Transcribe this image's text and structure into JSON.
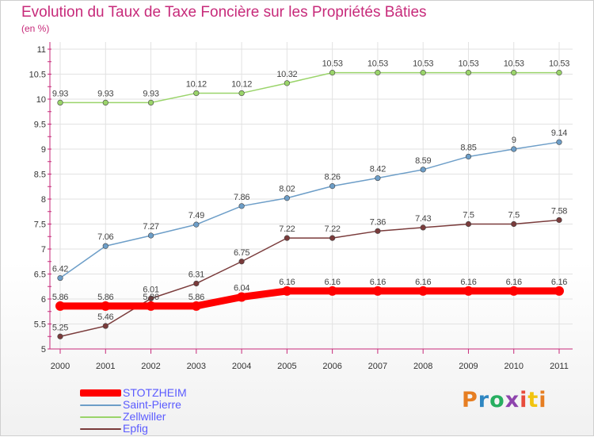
{
  "header": {
    "title": "Evolution du Taux de Taxe Foncière sur les Propriétés Bâties",
    "subtitle": "(en %)"
  },
  "logo": {
    "text": "Proxiti",
    "colors": [
      "#e67e22",
      "#2e86c1",
      "#27ae60",
      "#8e44ad",
      "#e74c3c",
      "#f1c40f",
      "#e67e22"
    ]
  },
  "chart_data": {
    "type": "line",
    "title": "Evolution du Taux de Taxe Foncière sur les Propriétés Bâties",
    "ylabel": "(en %)",
    "xlabel": "",
    "x": [
      "2000",
      "2001",
      "2002",
      "2003",
      "2004",
      "2005",
      "2006",
      "2007",
      "2008",
      "2009",
      "2010",
      "2011"
    ],
    "ylim": [
      5,
      11
    ],
    "yticks": [
      "5",
      "5.5",
      "6",
      "6.5",
      "7",
      "7.5",
      "8",
      "8.5",
      "9",
      "9.5",
      "10",
      "10.5",
      "11"
    ],
    "grid": true,
    "legend": "bottom-left",
    "series": [
      {
        "name": "STOTZHEIM",
        "color": "#ff0000",
        "values": [
          5.86,
          5.86,
          5.86,
          5.86,
          6.04,
          6.16,
          6.16,
          6.16,
          6.16,
          6.16,
          6.16,
          6.16
        ],
        "labels": [
          "5.86",
          "5.86",
          "5.86",
          "5.86",
          "6.04",
          "6.16",
          "6.16",
          "6.16",
          "6.16",
          "6.16",
          "6.16",
          "6.16"
        ]
      },
      {
        "name": "Saint-Pierre",
        "color": "#6d9ec8",
        "values": [
          6.42,
          7.06,
          7.27,
          7.49,
          7.86,
          8.02,
          8.26,
          8.42,
          8.59,
          8.85,
          9.0,
          9.14
        ],
        "labels": [
          "6.42",
          "7.06",
          "7.27",
          "7.49",
          "7.86",
          "8.02",
          "8.26",
          "8.42",
          "8.59",
          "8.85",
          "9",
          "9.14"
        ]
      },
      {
        "name": "Zellwiller",
        "color": "#9ad46a",
        "values": [
          9.93,
          9.93,
          9.93,
          10.12,
          10.12,
          10.32,
          10.53,
          10.53,
          10.53,
          10.53,
          10.53,
          10.53
        ],
        "labels": [
          "9.93",
          "9.93",
          "9.93",
          "10.12",
          "10.12",
          "10.32",
          "10.53",
          "10.53",
          "10.53",
          "10.53",
          "10.53",
          "10.53"
        ]
      },
      {
        "name": "Epfig",
        "color": "#7a3b3b",
        "values": [
          5.25,
          5.46,
          6.01,
          6.31,
          6.75,
          7.22,
          7.22,
          7.36,
          7.43,
          7.5,
          7.5,
          7.58
        ],
        "labels": [
          "5.25",
          "5.46",
          "6.01",
          "6.31",
          "6.75",
          "7.22",
          "7.22",
          "7.36",
          "7.43",
          "7.5",
          "7.5",
          "7.58"
        ]
      }
    ]
  }
}
